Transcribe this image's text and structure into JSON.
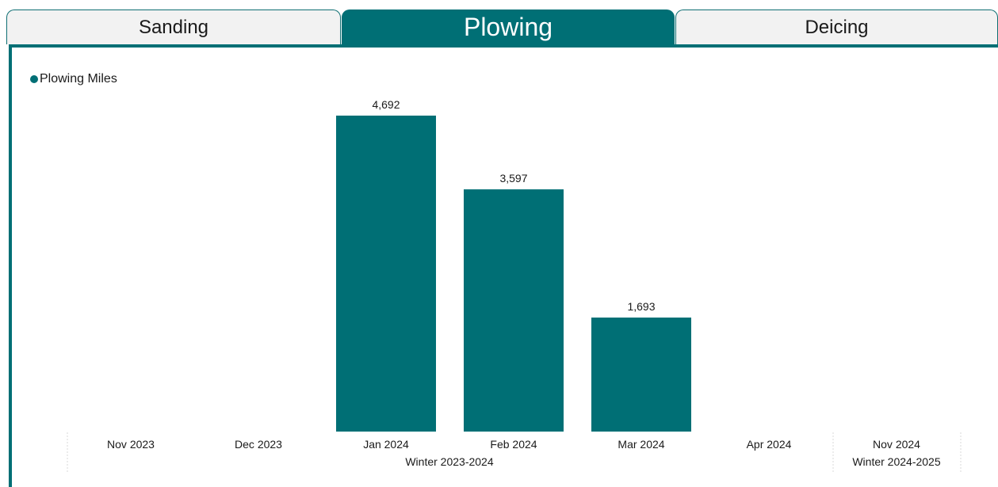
{
  "tabs": [
    {
      "label": "Sanding",
      "active": false
    },
    {
      "label": "Plowing",
      "active": true
    },
    {
      "label": "Deicing",
      "active": false
    }
  ],
  "colors": {
    "accent": "#006f75",
    "tab_inactive": "#f2f2f2"
  },
  "chart_data": {
    "type": "bar",
    "legend": {
      "label": "Plowing Miles",
      "position": "top-left"
    },
    "categories": [
      "Nov 2023",
      "Dec 2023",
      "Jan 2024",
      "Feb 2024",
      "Mar 2024",
      "Apr 2024",
      "Nov 2024"
    ],
    "values": [
      null,
      null,
      4692,
      3597,
      1693,
      null,
      null
    ],
    "value_labels": [
      "",
      "",
      "4,692",
      "3,597",
      "1,693",
      "",
      ""
    ],
    "groups": [
      {
        "label": "Winter 2023-2024",
        "categories": [
          "Nov 2023",
          "Dec 2023",
          "Jan 2024",
          "Feb 2024",
          "Mar 2024",
          "Apr 2024"
        ]
      },
      {
        "label": "Winter 2024-2025",
        "categories": [
          "Nov 2024"
        ]
      }
    ],
    "series": [
      {
        "name": "Plowing Miles"
      }
    ],
    "ylim": [
      0,
      4692
    ],
    "grid": false
  }
}
